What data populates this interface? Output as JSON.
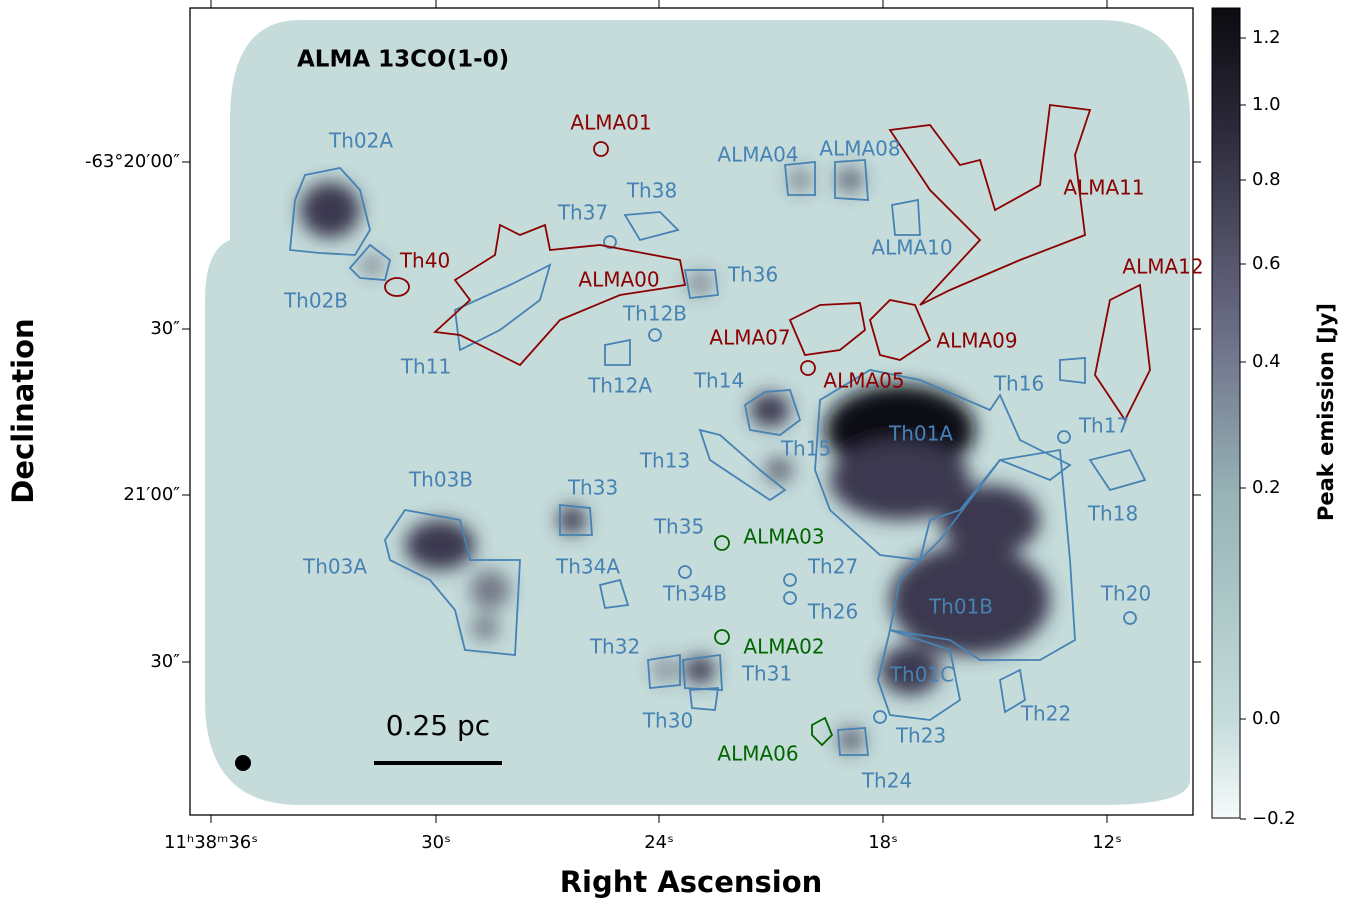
{
  "title": "ALMA 13CO(1-0)",
  "xlabel": "Right Ascension",
  "ylabel": "Declination",
  "xticks": [
    "11ʰ38ᵐ36ˢ",
    "30ˢ",
    "24ˢ",
    "18ˢ",
    "12ˢ"
  ],
  "yticks": [
    "-63°20′00″",
    "30″",
    "21′00″",
    "30″"
  ],
  "colorbar": {
    "label": "Peak emission [Jy]",
    "ticks": [
      "1.2",
      "1.0",
      "0.8",
      "0.6",
      "0.4",
      "0.2",
      "0.0",
      "−0.2"
    ]
  },
  "scale_bar": "0.25 pc",
  "labels": [
    {
      "color": "#4682b4",
      "names": [
        "Th02A",
        "Th02B",
        "Th11",
        "Th37",
        "Th38",
        "ALMA04",
        "ALMA08",
        "ALMA10",
        "Th36",
        "Th12B",
        "Th12A",
        "Th14",
        "Th15",
        "Th01A",
        "Th16",
        "Th17",
        "Th18",
        "Th13",
        "Th33",
        "Th35",
        "Th03B",
        "Th03A",
        "Th34A",
        "Th34B",
        "Th27",
        "Th26",
        "Th01B",
        "Th20",
        "Th32",
        "Th31",
        "Th01C",
        "Th22",
        "Th30",
        "Th23",
        "Th24"
      ]
    },
    {
      "color": "#8b0000",
      "names": [
        "ALMA01",
        "Th40",
        "ALMA00",
        "ALMA07",
        "ALMA05",
        "ALMA09",
        "ALMA11",
        "ALMA12"
      ]
    },
    {
      "color": "#006400",
      "names": [
        "ALMA03",
        "ALMA02",
        "ALMA06"
      ]
    }
  ]
}
